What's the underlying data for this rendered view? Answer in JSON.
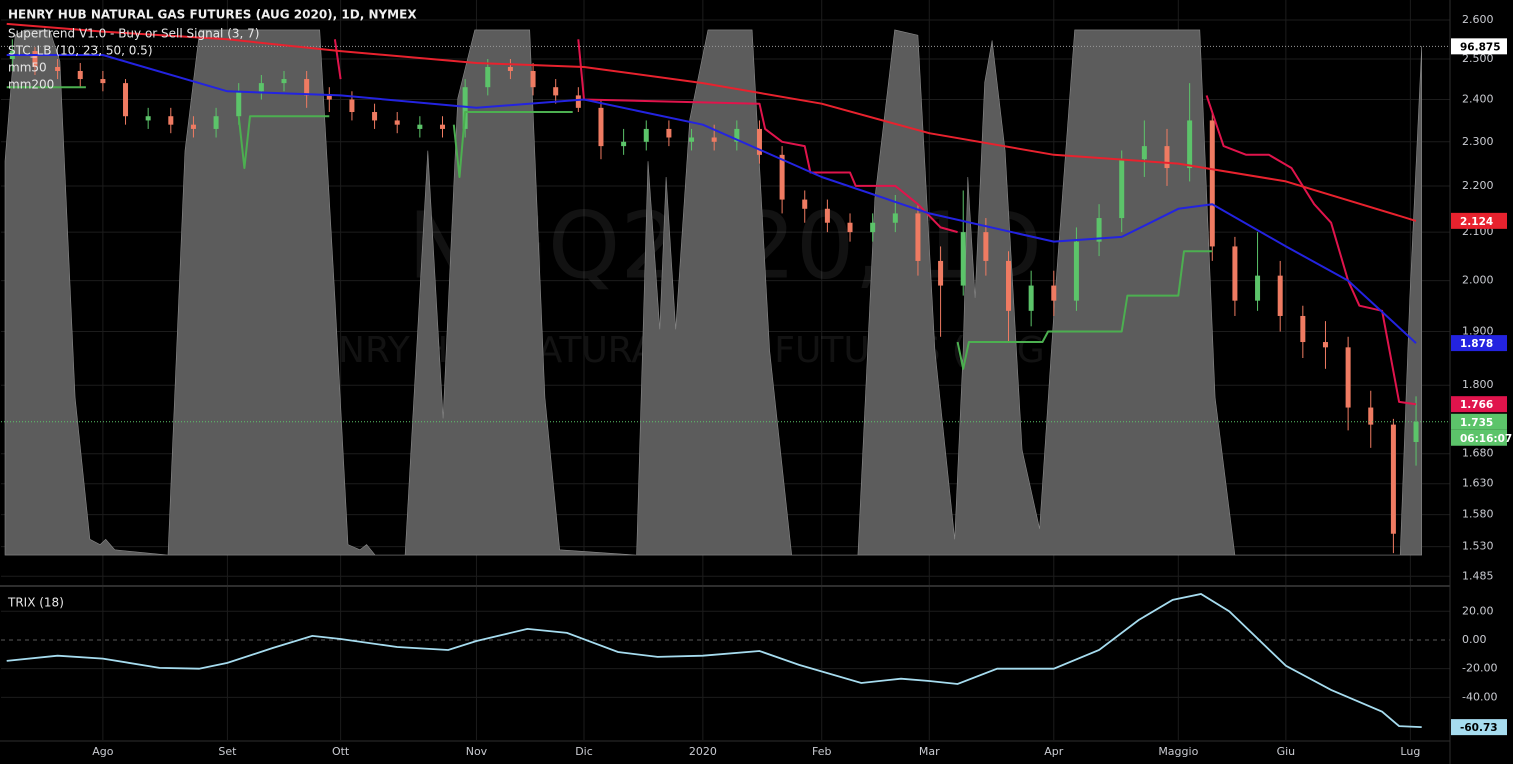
{
  "chart_data": [
    {
      "type": "candlestick",
      "title": "HENRY HUB NATURAL GAS FUTURES (AUG 2020), 1D, NYMEX",
      "watermark": [
        "NGQ2020, 1D",
        "HENRY HUB NATURAL GAS FUTURES (AUG 2020)"
      ],
      "countdown": "06:16:07",
      "log_scale": true,
      "grid": true,
      "up_color": "#5cc46a",
      "down_color": "#ef7b62",
      "xlim": [
        -18,
        238
      ],
      "xticks": [
        {
          "value": 0,
          "label": "Ago"
        },
        {
          "value": 22,
          "label": "Set"
        },
        {
          "value": 42,
          "label": "Ott"
        },
        {
          "value": 66,
          "label": "Nov"
        },
        {
          "value": 85,
          "label": "Dic"
        },
        {
          "value": 106,
          "label": "2020"
        },
        {
          "value": 127,
          "label": "Feb"
        },
        {
          "value": 146,
          "label": "Mar"
        },
        {
          "value": 168,
          "label": "Apr"
        },
        {
          "value": 190,
          "label": "Maggio"
        },
        {
          "value": 209,
          "label": "Giu"
        },
        {
          "value": 231,
          "label": "Lug"
        }
      ],
      "ylim": [
        1.472,
        2.653
      ],
      "yticks": [
        {
          "value": 2.6,
          "label": "2.600"
        },
        {
          "value": 2.5,
          "label": "2.500"
        },
        {
          "value": 2.4,
          "label": "2.400"
        },
        {
          "value": 2.3,
          "label": "2.300"
        },
        {
          "value": 2.2,
          "label": "2.200"
        },
        {
          "value": 2.1,
          "label": "2.100"
        },
        {
          "value": 2.0,
          "label": "2.000"
        },
        {
          "value": 1.9,
          "label": "1.900"
        },
        {
          "value": 1.8,
          "label": "1.800"
        },
        {
          "value": 1.68,
          "label": "1.680"
        },
        {
          "value": 1.63,
          "label": "1.630"
        },
        {
          "value": 1.58,
          "label": "1.580"
        },
        {
          "value": 1.53,
          "label": "1.530"
        },
        1.485
      ],
      "y2lim": [
        -5.7,
        105.7
      ],
      "x": [
        -16,
        -12,
        -8,
        -4,
        0,
        4,
        8,
        12,
        16,
        20,
        24,
        28,
        32,
        36,
        40,
        44,
        48,
        52,
        56,
        60,
        64,
        68,
        72,
        76,
        80,
        84,
        88,
        92,
        96,
        100,
        104,
        108,
        112,
        116,
        120,
        124,
        128,
        132,
        136,
        140,
        144,
        148,
        152,
        156,
        160,
        164,
        168,
        172,
        176,
        180,
        184,
        188,
        192,
        196,
        200,
        204,
        208,
        212,
        216,
        220,
        224,
        228,
        232
      ],
      "open": [
        2.5,
        2.52,
        2.48,
        2.47,
        2.45,
        2.44,
        2.35,
        2.36,
        2.34,
        2.33,
        2.36,
        2.42,
        2.44,
        2.45,
        2.41,
        2.4,
        2.37,
        2.35,
        2.33,
        2.34,
        2.33,
        2.43,
        2.48,
        2.47,
        2.43,
        2.41,
        2.38,
        2.29,
        2.3,
        2.33,
        2.3,
        2.31,
        2.3,
        2.33,
        2.27,
        2.17,
        2.15,
        2.12,
        2.1,
        2.12,
        2.14,
        2.04,
        1.99,
        2.1,
        2.04,
        1.94,
        1.99,
        1.96,
        2.08,
        2.13,
        2.26,
        2.29,
        2.24,
        2.35,
        2.07,
        1.96,
        2.01,
        1.93,
        1.88,
        1.87,
        1.76,
        1.73,
        1.7
      ],
      "high": [
        2.55,
        2.53,
        2.5,
        2.49,
        2.47,
        2.45,
        2.38,
        2.38,
        2.36,
        2.38,
        2.44,
        2.46,
        2.47,
        2.47,
        2.43,
        2.42,
        2.39,
        2.37,
        2.36,
        2.36,
        2.45,
        2.5,
        2.5,
        2.49,
        2.45,
        2.43,
        2.4,
        2.33,
        2.35,
        2.35,
        2.33,
        2.34,
        2.35,
        2.35,
        2.29,
        2.19,
        2.17,
        2.14,
        2.14,
        2.18,
        2.16,
        2.07,
        2.19,
        2.13,
        2.06,
        2.02,
        2.02,
        2.11,
        2.16,
        2.28,
        2.35,
        2.33,
        2.44,
        2.37,
        2.09,
        2.1,
        2.04,
        1.95,
        1.92,
        1.89,
        1.79,
        1.74,
        1.78
      ],
      "low": [
        2.47,
        2.46,
        2.45,
        2.43,
        2.42,
        2.34,
        2.33,
        2.32,
        2.31,
        2.31,
        2.34,
        2.4,
        2.42,
        2.38,
        2.37,
        2.35,
        2.33,
        2.32,
        2.31,
        2.31,
        2.31,
        2.41,
        2.45,
        2.41,
        2.39,
        2.37,
        2.26,
        2.27,
        2.28,
        2.29,
        2.28,
        2.28,
        2.28,
        2.25,
        2.14,
        2.12,
        2.1,
        2.08,
        2.08,
        2.1,
        2.01,
        1.89,
        1.97,
        2.01,
        1.88,
        1.91,
        1.93,
        1.94,
        2.05,
        2.1,
        2.22,
        2.2,
        2.21,
        2.04,
        1.93,
        1.94,
        1.9,
        1.85,
        1.83,
        1.72,
        1.69,
        1.52,
        1.66
      ],
      "close": [
        2.52,
        2.48,
        2.47,
        2.45,
        2.44,
        2.36,
        2.36,
        2.34,
        2.33,
        2.36,
        2.42,
        2.44,
        2.45,
        2.41,
        2.4,
        2.37,
        2.35,
        2.34,
        2.34,
        2.33,
        2.43,
        2.48,
        2.47,
        2.43,
        2.41,
        2.38,
        2.29,
        2.3,
        2.33,
        2.31,
        2.31,
        2.3,
        2.33,
        2.27,
        2.17,
        2.15,
        2.12,
        2.1,
        2.12,
        2.14,
        2.04,
        1.99,
        2.1,
        2.04,
        1.94,
        1.99,
        1.96,
        2.08,
        2.13,
        2.26,
        2.29,
        2.24,
        2.35,
        2.07,
        1.96,
        2.01,
        1.93,
        1.88,
        1.87,
        1.76,
        1.73,
        1.55,
        1.735
      ],
      "indicators": [
        {
          "name": "Supertrend V1.0 - Buy or Sell Signal (3, 7)",
          "lines": [
            {
              "color": "#4caf50",
              "last_label": false,
              "x": [
                -17,
                -3,
                10,
                24,
                25,
                26,
                40,
                52,
                62,
                63,
                64,
                83,
                120,
                151,
                152,
                153,
                166,
                167,
                180,
                181,
                190,
                191,
                196
              ],
              "values": [
                2.43,
                2.43,
                null,
                2.36,
                2.24,
                2.36,
                2.36,
                null,
                2.34,
                2.22,
                2.37,
                2.37,
                null,
                1.88,
                1.83,
                1.88,
                1.88,
                1.9,
                1.9,
                1.97,
                1.97,
                2.06,
                2.06
              ]
            },
            {
              "color": "#e0144c",
              "last_label": true,
              "x": [
                41,
                42,
                60,
                84,
                85,
                116,
                117,
                120,
                124,
                125,
                132,
                133,
                140,
                144,
                148,
                151,
                170,
                195,
                198,
                202,
                206,
                210,
                214,
                217,
                220,
                222,
                226,
                229,
                232
              ],
              "values": [
                2.55,
                2.45,
                null,
                2.55,
                2.4,
                2.39,
                2.33,
                2.3,
                2.29,
                2.23,
                2.23,
                2.2,
                2.2,
                2.16,
                2.11,
                2.1,
                null,
                2.41,
                2.29,
                2.27,
                2.27,
                2.24,
                2.16,
                2.12,
                2.0,
                1.95,
                1.94,
                1.77,
                1.766
              ]
            }
          ]
        },
        {
          "name": "STC_LB (10, 23, 50, 0.5)",
          "lines": [
            {
              "color": "#5c5c5c",
              "fill": true,
              "axis": "y2",
              "last_label": true,
              "last_line": true,
              "box_color": "#ffffff",
              "x": [
                -17.3,
                -15.5,
                -13.8,
                -9.4,
                -7.6,
                -4.9,
                -2.3,
                -0.5,
                0.5,
                2.1,
                11.5,
                14.5,
                17.1,
                38.3,
                41.0,
                43.3,
                45.4,
                46.6,
                48.1,
                53.4,
                57.4,
                60.1,
                62.7,
                65.7,
                75.4,
                78.1,
                80.7,
                94.3,
                96.3,
                98.4,
                99.5,
                101.2,
                103.7,
                106.9,
                114.7,
                117.8,
                121.7,
                133.4,
                136.4,
                139.9,
                144.0,
                147.0,
                150.5,
                152.0,
                152.8,
                154.1,
                155.8,
                157.1,
                159.4,
                162.4,
                165.5,
                168.2,
                171.7,
                193.8,
                196.5,
                200.0,
                229.2,
                230.9,
                233.0
              ],
              "values": [
                75,
                99,
                100,
                100,
                94,
                30,
                3,
                2,
                3,
                1,
                0,
                77,
                100,
                100,
                49,
                2,
                1,
                2,
                0,
                0,
                77,
                26,
                87,
                100,
                100,
                30,
                1,
                0,
                75,
                43,
                72,
                43,
                83,
                100,
                100,
                39,
                0,
                0,
                68,
                100,
                99,
                39,
                3,
                39,
                72,
                49,
                90,
                98,
                77,
                20,
                5,
                49,
                100,
                100,
                30,
                0,
                0,
                49,
                96.875
              ]
            }
          ]
        },
        {
          "name": "mm50",
          "lines": [
            {
              "color": "#2323e0",
              "last_label": true,
              "x": [
                -17,
                0,
                22,
                42,
                66,
                85,
                106,
                127,
                146,
                168,
                180,
                190,
                196,
                209,
                220,
                232
              ],
              "values": [
                2.51,
                2.51,
                2.42,
                2.41,
                2.38,
                2.4,
                2.34,
                2.22,
                2.14,
                2.08,
                2.09,
                2.15,
                2.16,
                2.07,
                2.0,
                1.878
              ]
            }
          ]
        },
        {
          "name": "mm200",
          "lines": [
            {
              "color": "#e8222e",
              "last_label": true,
              "x": [
                -17,
                0,
                22,
                42,
                66,
                85,
                106,
                127,
                146,
                168,
                190,
                209,
                232
              ],
              "values": [
                2.59,
                2.57,
                2.55,
                2.52,
                2.49,
                2.48,
                2.44,
                2.39,
                2.32,
                2.27,
                2.25,
                2.21,
                2.124
              ]
            }
          ]
        }
      ]
    },
    {
      "type": "line",
      "ylim": [
        -69.7,
        36.2
      ],
      "yticks": [
        {
          "value": 20,
          "label": "20.00"
        },
        {
          "value": 0,
          "label": "0.00"
        },
        {
          "value": -20,
          "label": "-20.00"
        },
        {
          "value": -40,
          "label": "-40.00"
        }
      ],
      "series": [
        {
          "name": "TRIX (18)",
          "color": "#a6dcef",
          "x": [
            -17,
            -8,
            0,
            10,
            17,
            22,
            30,
            37,
            42,
            52,
            61,
            66,
            75,
            82,
            91,
            98,
            106,
            116,
            123,
            134,
            141,
            146,
            151,
            158,
            168,
            176,
            183,
            189,
            194,
            199,
            209,
            217,
            226,
            229,
            233
          ],
          "values": [
            -14.6,
            -11,
            -13,
            -19.5,
            -20,
            -16,
            -5.6,
            2.8,
            0.7,
            -4.9,
            -7,
            -0.7,
            7.7,
            4.9,
            -8.4,
            -11.8,
            -11,
            -7.7,
            -17.4,
            -30,
            -27,
            -28.6,
            -30.7,
            -20,
            -20,
            -7,
            13.9,
            27.9,
            32,
            20,
            -18,
            -34.8,
            -50,
            -60,
            -60.73
          ]
        }
      ]
    }
  ]
}
